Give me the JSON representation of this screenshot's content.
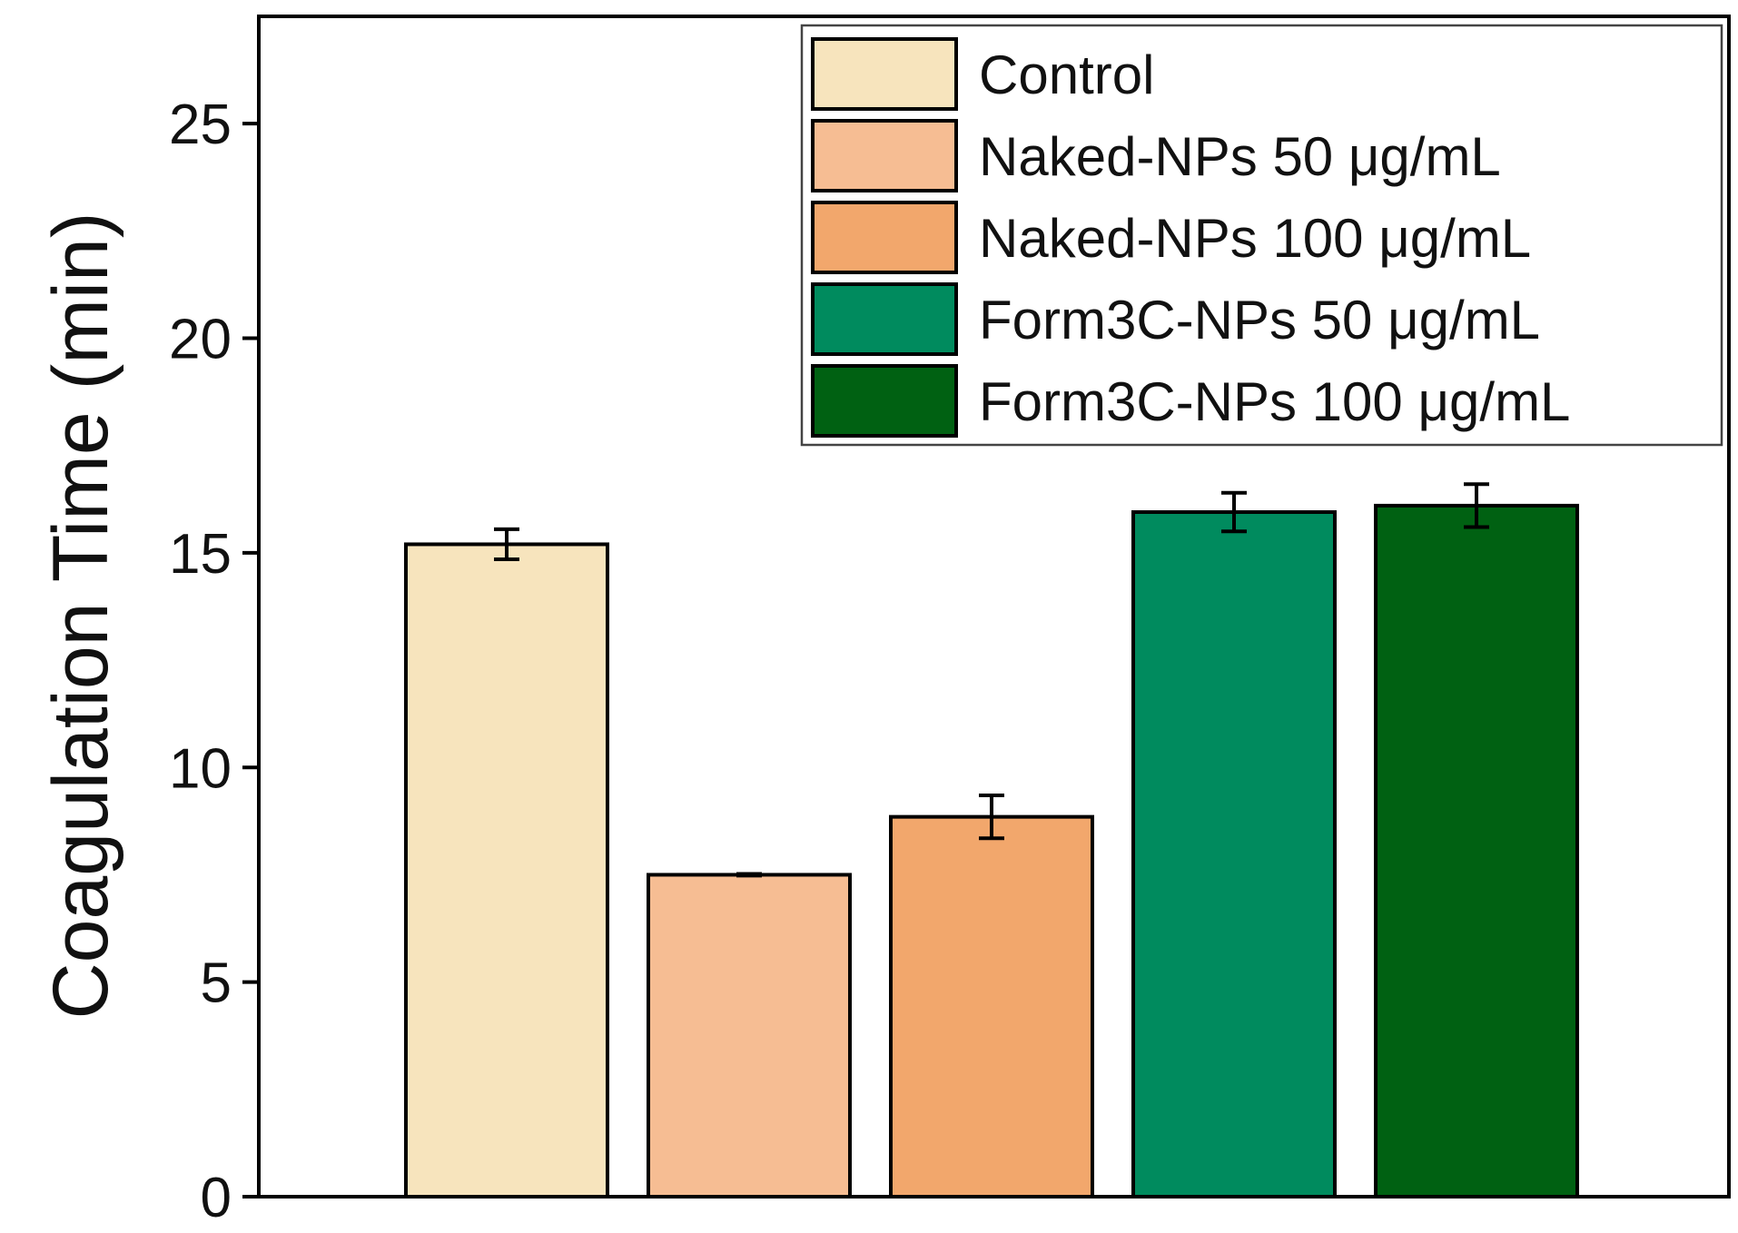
{
  "chart_data": {
    "type": "bar",
    "title": "",
    "xlabel": "",
    "ylabel": "Coagulation Time (min)",
    "ylim": [
      0,
      27.5
    ],
    "yticks": [
      "0",
      "5",
      "10",
      "15",
      "20",
      "25"
    ],
    "grid": false,
    "legend_position": "top-right",
    "bar_outline": "#000000",
    "series": [
      {
        "name": "Control",
        "value": 15.2,
        "error": 0.35,
        "color": "#F7E4BD"
      },
      {
        "name": "Naked-NPs 50 μg/mL",
        "value": 7.5,
        "error": 0.02,
        "color": "#F6BD93"
      },
      {
        "name": "Naked-NPs 100 μg/mL",
        "value": 8.85,
        "error": 0.5,
        "color": "#F2A76C"
      },
      {
        "name": "Form3C-NPs 50 μg/mL",
        "value": 15.95,
        "error": 0.45,
        "color": "#008B5E"
      },
      {
        "name": "Form3C-NPs 100 μg/mL",
        "value": 16.1,
        "error": 0.5,
        "color": "#006112"
      }
    ]
  }
}
